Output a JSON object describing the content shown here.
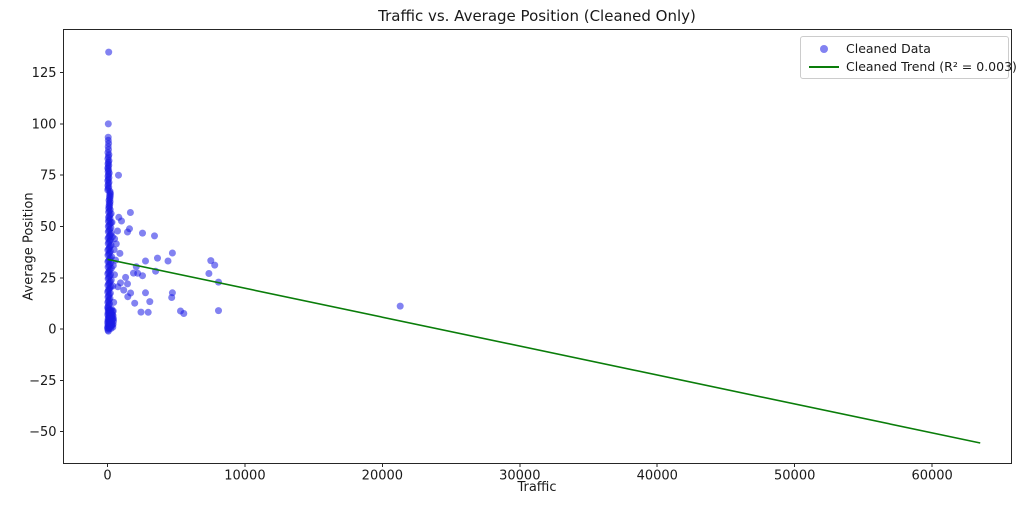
{
  "chart_data": {
    "type": "scatter",
    "title": "Traffic vs. Average Position (Cleaned Only)",
    "xlabel": "Traffic",
    "ylabel": "Average Position",
    "xlim": [
      -3200,
      65775
    ],
    "ylim": [
      -65.5,
      146
    ],
    "x_ticks": [
      0,
      10000,
      20000,
      30000,
      40000,
      50000,
      60000
    ],
    "y_ticks": [
      -50,
      -25,
      0,
      25,
      50,
      75,
      100,
      125
    ],
    "grid": false,
    "legend": {
      "position": "upper right",
      "entries": [
        {
          "label": "Cleaned Data",
          "type": "marker",
          "color": "#1c1ce5",
          "alpha": 0.55
        },
        {
          "label": "Cleaned Trend (R² = 0.003)",
          "type": "line",
          "color": "#0a7d0a"
        }
      ]
    },
    "series": [
      {
        "name": "Cleaned Data",
        "type": "scatter",
        "color": "#1c1ce5",
        "alpha": 0.55,
        "marker_radius": 3.5,
        "points": [
          [
            10,
            0.5
          ],
          [
            25,
            1
          ],
          [
            40,
            2
          ],
          [
            15,
            3
          ],
          [
            30,
            4
          ],
          [
            55,
            5
          ],
          [
            70,
            6
          ],
          [
            20,
            7
          ],
          [
            45,
            8
          ],
          [
            60,
            9
          ],
          [
            85,
            1.5
          ],
          [
            100,
            2.5
          ],
          [
            120,
            3.5
          ],
          [
            140,
            5.5
          ],
          [
            160,
            7.5
          ],
          [
            180,
            9.5
          ],
          [
            200,
            1.2
          ],
          [
            220,
            2.8
          ],
          [
            240,
            4.2
          ],
          [
            260,
            6.3
          ],
          [
            280,
            8.1
          ],
          [
            300,
            3.2
          ],
          [
            320,
            5.8
          ],
          [
            340,
            7.2
          ],
          [
            360,
            2.1
          ],
          [
            380,
            4.8
          ],
          [
            400,
            6.6
          ],
          [
            420,
            8.8
          ],
          [
            440,
            3.9
          ],
          [
            35,
            -0.5
          ],
          [
            65,
            -1
          ],
          [
            90,
            0.2
          ],
          [
            110,
            1.8
          ],
          [
            130,
            6.1
          ],
          [
            150,
            8.4
          ],
          [
            170,
            0.8
          ],
          [
            190,
            5.2
          ],
          [
            210,
            7.8
          ],
          [
            230,
            9.2
          ],
          [
            250,
            0.3
          ],
          [
            270,
            2.2
          ],
          [
            290,
            9.8
          ],
          [
            310,
            1.6
          ],
          [
            330,
            4.5
          ],
          [
            350,
            6.9
          ],
          [
            370,
            8.6
          ],
          [
            390,
            0.9
          ],
          [
            410,
            2.4
          ],
          [
            430,
            5.1
          ],
          [
            50,
            9.9
          ],
          [
            75,
            4.1
          ],
          [
            95,
            7.4
          ],
          [
            115,
            9.1
          ],
          [
            135,
            2.9
          ],
          [
            155,
            4.9
          ],
          [
            15,
            10.5
          ],
          [
            54,
            11
          ],
          [
            96,
            11.8
          ],
          [
            144,
            12.4
          ],
          [
            24,
            13
          ],
          [
            66,
            13.7
          ],
          [
            120,
            14.3
          ],
          [
            180,
            15
          ],
          [
            36,
            15.6
          ],
          [
            84,
            16.2
          ],
          [
            135,
            16.9
          ],
          [
            210,
            17.5
          ],
          [
            18,
            18.1
          ],
          [
            60,
            18.8
          ],
          [
            114,
            19.4
          ],
          [
            165,
            20
          ],
          [
            240,
            20.7
          ],
          [
            30,
            21.3
          ],
          [
            78,
            22
          ],
          [
            132,
            22.6
          ],
          [
            195,
            23.2
          ],
          [
            270,
            23.9
          ],
          [
            42,
            24.5
          ],
          [
            90,
            25.1
          ],
          [
            150,
            25.8
          ],
          [
            225,
            26.4
          ],
          [
            21,
            27
          ],
          [
            72,
            27.7
          ],
          [
            126,
            28.3
          ],
          [
            186,
            29
          ],
          [
            285,
            29.6
          ],
          [
            48,
            30.2
          ],
          [
            102,
            30.9
          ],
          [
            156,
            31.5
          ],
          [
            234,
            32.1
          ],
          [
            27,
            32.8
          ],
          [
            81,
            33.4
          ],
          [
            138,
            34
          ],
          [
            204,
            34.7
          ],
          [
            300,
            35.3
          ],
          [
            39,
            36
          ],
          [
            93,
            36.6
          ],
          [
            147,
            37.2
          ],
          [
            216,
            37.9
          ],
          [
            33,
            38.5
          ],
          [
            87,
            39.1
          ],
          [
            141,
            39.8
          ],
          [
            198,
            40.4
          ],
          [
            264,
            41
          ],
          [
            51,
            41.7
          ],
          [
            105,
            42.3
          ],
          [
            162,
            43
          ],
          [
            228,
            43.6
          ],
          [
            45,
            44.2
          ],
          [
            99,
            44.9
          ],
          [
            153,
            45.5
          ],
          [
            210,
            46.1
          ],
          [
            276,
            46.8
          ],
          [
            57,
            47.4
          ],
          [
            111,
            48
          ],
          [
            168,
            48.7
          ],
          [
            246,
            49.3
          ],
          [
            63,
            50
          ],
          [
            117,
            50.6
          ],
          [
            174,
            51.2
          ],
          [
            255,
            51.9
          ],
          [
            69,
            52.5
          ],
          [
            123,
            53.1
          ],
          [
            183,
            53.8
          ],
          [
            75,
            54.4
          ],
          [
            129,
            55
          ],
          [
            189,
            55.7
          ],
          [
            261,
            56.3
          ],
          [
            84,
            57
          ],
          [
            138,
            57.6
          ],
          [
            201,
            58.2
          ],
          [
            90,
            58.9
          ],
          [
            150,
            59.5
          ],
          [
            108,
            60.1
          ],
          [
            171,
            60.8
          ],
          [
            132,
            61.4
          ],
          [
            192,
            62
          ],
          [
            114,
            62.7
          ],
          [
            177,
            63.3
          ],
          [
            144,
            64
          ],
          [
            207,
            64.6
          ],
          [
            156,
            65.2
          ],
          [
            219,
            65.9
          ],
          [
            168,
            66.5
          ],
          [
            180,
            67.1
          ],
          [
            20,
            67.8
          ],
          [
            50,
            68.5
          ],
          [
            88,
            69.2
          ],
          [
            30,
            70
          ],
          [
            70,
            70.8
          ],
          [
            113,
            71.5
          ],
          [
            25,
            72.3
          ],
          [
            63,
            73
          ],
          [
            100,
            73.8
          ],
          [
            38,
            74.5
          ],
          [
            75,
            75.3
          ],
          [
            125,
            76
          ],
          [
            45,
            76.8
          ],
          [
            83,
            77.5
          ],
          [
            20,
            78.3
          ],
          [
            55,
            79
          ],
          [
            95,
            79.8
          ],
          [
            35,
            80.5
          ],
          [
            70,
            81.3
          ],
          [
            110,
            82
          ],
          [
            30,
            83
          ],
          [
            65,
            84
          ],
          [
            100,
            85
          ],
          [
            40,
            86
          ],
          [
            75,
            87.5
          ],
          [
            50,
            89
          ],
          [
            85,
            90.5
          ],
          [
            60,
            92
          ],
          [
            90,
            135
          ],
          [
            60,
            100
          ],
          [
            50,
            93.5
          ],
          [
            800,
            75
          ],
          [
            1670,
            56.8
          ],
          [
            820,
            54.5
          ],
          [
            1020,
            52.7
          ],
          [
            1600,
            48.9
          ],
          [
            730,
            47.8
          ],
          [
            1455,
            47.3
          ],
          [
            2545,
            46.8
          ],
          [
            3418,
            45.4
          ],
          [
            520,
            44
          ],
          [
            640,
            41.5
          ],
          [
            480,
            38.7
          ],
          [
            900,
            36.9
          ],
          [
            3636,
            34.6
          ],
          [
            4727,
            37.1
          ],
          [
            2764,
            33.2
          ],
          [
            2100,
            30.4
          ],
          [
            1890,
            27.3
          ],
          [
            2545,
            26
          ],
          [
            1320,
            25.2
          ],
          [
            945,
            22.5
          ],
          [
            1455,
            22
          ],
          [
            760,
            20.6
          ],
          [
            1180,
            19
          ],
          [
            1680,
            17.6
          ],
          [
            2764,
            17.7
          ],
          [
            4727,
            17.7
          ],
          [
            1480,
            15.8
          ],
          [
            2960,
            8.2
          ],
          [
            4670,
            15.4
          ],
          [
            5550,
            7.6
          ],
          [
            2440,
            8.3
          ],
          [
            1980,
            12.6
          ],
          [
            3080,
            13.4
          ],
          [
            5310,
            8.8
          ],
          [
            420,
            31
          ],
          [
            360,
            45
          ],
          [
            330,
            52
          ],
          [
            390,
            21
          ],
          [
            450,
            13
          ],
          [
            510,
            26.5
          ],
          [
            580,
            33.6
          ],
          [
            2200,
            27.2
          ],
          [
            3500,
            28.2
          ],
          [
            4400,
            33.2
          ],
          [
            7520,
            33.4
          ],
          [
            7800,
            31.2
          ],
          [
            7380,
            27.1
          ],
          [
            8080,
            22.9
          ],
          [
            8080,
            9
          ],
          [
            21300,
            11.2
          ]
        ]
      },
      {
        "name": "Cleaned Trend (R² = 0.003)",
        "type": "line",
        "color": "#0a7d0a",
        "width": 1.6,
        "r_squared": 0.003,
        "points": [
          [
            0,
            34
          ],
          [
            63500,
            -55.5
          ]
        ]
      }
    ]
  }
}
